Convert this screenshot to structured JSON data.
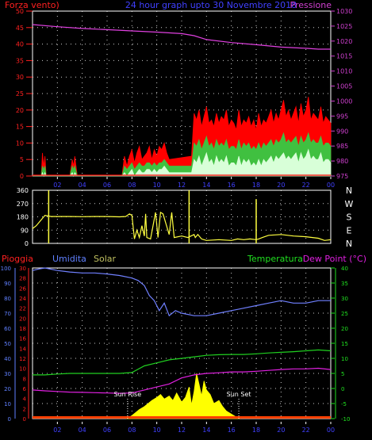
{
  "header": {
    "left_label": "Forza vento)",
    "center_title": "24 hour graph upto  30 Novembre 2018",
    "right_label": "Pressione"
  },
  "colors": {
    "background": "#000000",
    "frame": "#ffffff",
    "grid": "#ffffff",
    "wind_axis": "#ff2020",
    "pressure_axis": "#d040d0",
    "time_axis": "#4040ff",
    "wind_gust": "#ff0000",
    "wind_avg": "#40c040",
    "wind_min": "#d8ffd8",
    "pressure_line": "#e040e0",
    "direction_line": "#ffff40",
    "direction_labels": "#ffffff",
    "rain_axis": "#ff2020",
    "humidity_axis": "#6080ff",
    "temperature_axis": "#20e020",
    "humidity_line": "#7080ff",
    "temperature_line": "#20d020",
    "dewpoint_line": "#e020e0",
    "solar_fill": "#ffff00",
    "rain_bar": "#ff4000",
    "sun_marker": "#ffffff"
  },
  "time_ticks": [
    "02",
    "04",
    "06",
    "08",
    "10",
    "12",
    "14",
    "16",
    "18",
    "20",
    "22",
    "00"
  ],
  "chart_data": [
    {
      "type": "line",
      "name": "wind-pressure",
      "ylabel_left": "Forza vento)",
      "ylabel_right": "Pressione",
      "x_range": [
        0,
        24
      ],
      "ylim_left": [
        0,
        50
      ],
      "yticks_left": [
        "0",
        "5",
        "10",
        "15",
        "20",
        "25",
        "30",
        "35",
        "40",
        "45",
        "50"
      ],
      "ylim_right": [
        975,
        1030
      ],
      "yticks_right": [
        "975",
        "980",
        "985",
        "990",
        "995",
        "1000",
        "1005",
        "1010",
        "1015",
        "1020",
        "1025",
        "1030"
      ],
      "series": [
        {
          "key": "gust",
          "x": [
            0,
            0.7,
            0.8,
            0.9,
            1.0,
            1.1,
            3.0,
            3.2,
            3.3,
            3.4,
            3.6,
            7.2,
            7.4,
            7.6,
            7.8,
            8.0,
            8.2,
            8.4,
            8.6,
            8.8,
            9.0,
            9.2,
            9.4,
            9.6,
            9.8,
            10.0,
            10.2,
            10.4,
            10.6,
            10.8,
            11.0,
            12.8,
            13.0,
            13.2,
            13.4,
            13.6,
            13.8,
            14.0,
            14.2,
            14.4,
            14.6,
            14.8,
            15.0,
            15.2,
            15.4,
            15.6,
            15.8,
            16.0,
            16.2,
            16.4,
            16.6,
            16.8,
            17.0,
            17.2,
            17.4,
            17.6,
            17.8,
            18.0,
            18.2,
            18.4,
            18.6,
            18.8,
            19.0,
            19.2,
            19.4,
            19.6,
            19.8,
            20.0,
            20.2,
            20.4,
            20.6,
            20.8,
            21.0,
            21.2,
            21.4,
            21.6,
            21.8,
            22.0,
            22.2,
            22.4,
            22.6,
            22.8,
            23.0,
            23.2,
            23.4,
            23.6,
            23.8,
            24.0
          ],
          "y": [
            0,
            0,
            7,
            3,
            6,
            0,
            0,
            5,
            3,
            6,
            0,
            0,
            6,
            3,
            6,
            8,
            4,
            7,
            9,
            5,
            6,
            7,
            9,
            5,
            8,
            6,
            9,
            8,
            10,
            7,
            5,
            6,
            19,
            17,
            20,
            15,
            18,
            21,
            16,
            17,
            15,
            19,
            16,
            18,
            17,
            20,
            15,
            17,
            16,
            14,
            20,
            15,
            17,
            16,
            18,
            15,
            17,
            14,
            19,
            15,
            17,
            16,
            18,
            20,
            16,
            19,
            17,
            20,
            23,
            18,
            20,
            17,
            19,
            21,
            16,
            22,
            18,
            20,
            24,
            17,
            19,
            18,
            17,
            21,
            16,
            18,
            17,
            16
          ]
        },
        {
          "key": "average",
          "x": [
            0,
            0.7,
            0.8,
            0.9,
            1.0,
            1.1,
            3.0,
            3.2,
            3.3,
            3.4,
            3.6,
            7.2,
            7.4,
            7.6,
            7.8,
            8.0,
            8.2,
            8.4,
            8.6,
            8.8,
            9.0,
            9.2,
            9.4,
            9.6,
            9.8,
            10.0,
            10.2,
            10.4,
            10.6,
            10.8,
            11.0,
            12.8,
            13.0,
            13.2,
            13.4,
            13.6,
            13.8,
            14.0,
            14.2,
            14.4,
            14.6,
            14.8,
            15.0,
            15.2,
            15.4,
            15.6,
            15.8,
            16.0,
            16.2,
            16.4,
            16.6,
            16.8,
            17.0,
            17.2,
            17.4,
            17.6,
            17.8,
            18.0,
            18.2,
            18.4,
            18.6,
            18.8,
            19.0,
            19.2,
            19.4,
            19.6,
            19.8,
            20.0,
            20.2,
            20.4,
            20.6,
            20.8,
            21.0,
            21.2,
            21.4,
            21.6,
            21.8,
            22.0,
            22.2,
            22.4,
            22.6,
            22.8,
            23.0,
            23.2,
            23.4,
            23.6,
            23.8,
            24.0
          ],
          "y": [
            0,
            0,
            3,
            2,
            3,
            0,
            0,
            3,
            2,
            3,
            0,
            0,
            3,
            2,
            3,
            4,
            2,
            3,
            4,
            3,
            3,
            4,
            4,
            3,
            4,
            3,
            4,
            4,
            5,
            4,
            3,
            3,
            10,
            9,
            11,
            8,
            10,
            12,
            9,
            10,
            8,
            11,
            9,
            10,
            9,
            11,
            8,
            9,
            9,
            8,
            11,
            8,
            10,
            9,
            10,
            8,
            9,
            8,
            10,
            8,
            10,
            9,
            10,
            11,
            9,
            11,
            10,
            11,
            13,
            10,
            11,
            10,
            11,
            12,
            9,
            12,
            10,
            11,
            13,
            10,
            11,
            10,
            10,
            12,
            9,
            10,
            10,
            9
          ]
        },
        {
          "key": "minimum",
          "x": [
            0,
            0.7,
            0.8,
            0.9,
            1.0,
            1.1,
            3.0,
            3.2,
            3.3,
            3.4,
            3.6,
            7.2,
            7.4,
            7.6,
            7.8,
            8.0,
            8.2,
            8.4,
            8.6,
            8.8,
            9.0,
            9.2,
            9.4,
            9.6,
            9.8,
            10.0,
            10.2,
            10.4,
            10.6,
            10.8,
            11.0,
            12.8,
            13.0,
            13.2,
            13.4,
            13.6,
            13.8,
            14.0,
            14.2,
            14.4,
            14.6,
            14.8,
            15.0,
            15.2,
            15.4,
            15.6,
            15.8,
            16.0,
            16.2,
            16.4,
            16.6,
            16.8,
            17.0,
            17.2,
            17.4,
            17.6,
            17.8,
            18.0,
            18.2,
            18.4,
            18.6,
            18.8,
            19.0,
            19.2,
            19.4,
            19.6,
            19.8,
            20.0,
            20.2,
            20.4,
            20.6,
            20.8,
            21.0,
            21.2,
            21.4,
            21.6,
            21.8,
            22.0,
            22.2,
            22.4,
            22.6,
            22.8,
            23.0,
            23.2,
            23.4,
            23.6,
            23.8,
            24.0
          ],
          "y": [
            0,
            0,
            1,
            0,
            1,
            0,
            0,
            1,
            0,
            1,
            0,
            0,
            1,
            0,
            1,
            2,
            0,
            1,
            2,
            1,
            1,
            2,
            2,
            1,
            2,
            1,
            2,
            2,
            3,
            2,
            1,
            1,
            5,
            4,
            6,
            3,
            5,
            7,
            4,
            5,
            3,
            6,
            4,
            5,
            4,
            6,
            3,
            4,
            4,
            3,
            6,
            3,
            5,
            4,
            5,
            3,
            4,
            3,
            5,
            3,
            5,
            4,
            5,
            6,
            4,
            6,
            5,
            6,
            7,
            5,
            6,
            5,
            6,
            7,
            4,
            7,
            5,
            6,
            8,
            5,
            6,
            5,
            5,
            7,
            4,
            5,
            5,
            4
          ]
        },
        {
          "key": "pressure",
          "axis": "right",
          "x": [
            0,
            2,
            4,
            6,
            8,
            10,
            12,
            13,
            14,
            16,
            18,
            20,
            22,
            23,
            24
          ],
          "y": [
            1025.5,
            1024.8,
            1024.2,
            1023.8,
            1023.4,
            1023.0,
            1022.5,
            1021.8,
            1020.5,
            1019.5,
            1018.8,
            1018.0,
            1017.6,
            1017.3,
            1017.3
          ]
        }
      ]
    },
    {
      "type": "line",
      "name": "wind-direction",
      "x_range": [
        0,
        24
      ],
      "ylim": [
        0,
        360
      ],
      "yticks": [
        "0",
        "90",
        "180",
        "270",
        "360"
      ],
      "direction_labels": [
        "N",
        "W",
        "S",
        "E",
        "N"
      ],
      "series": [
        {
          "key": "direction",
          "x": [
            0,
            0.3,
            0.6,
            1.0,
            1.5,
            2.0,
            3.0,
            4.0,
            5.0,
            6.0,
            7.0,
            7.5,
            7.8,
            8.0,
            8.2,
            8.4,
            8.6,
            8.8,
            9.0,
            9.1,
            9.2,
            9.5,
            9.9,
            10.1,
            10.3,
            10.5,
            11.0,
            11.2,
            11.4,
            12.0,
            12.5,
            13.0,
            13.1,
            13.3,
            13.6,
            14.0,
            15.0,
            16.0,
            16.5,
            17.0,
            17.5,
            18.0,
            18.2,
            18.5,
            19.0,
            20.0,
            21.0,
            22.0,
            23.0,
            23.5,
            24.0
          ],
          "y": [
            100,
            120,
            150,
            190,
            182,
            182,
            182,
            181,
            182,
            182,
            180,
            182,
            200,
            190,
            30,
            90,
            40,
            120,
            50,
            200,
            40,
            30,
            210,
            40,
            210,
            200,
            60,
            210,
            40,
            50,
            40,
            60,
            40,
            60,
            30,
            20,
            25,
            20,
            30,
            25,
            30,
            25,
            30,
            40,
            55,
            60,
            50,
            45,
            35,
            20,
            25
          ]
        }
      ],
      "spikes": [
        {
          "x": 1.3,
          "y": 360
        },
        {
          "x": 12.6,
          "y": 360
        },
        {
          "x": 18.0,
          "y": 300
        }
      ]
    },
    {
      "type": "line",
      "name": "temperature-humidity",
      "labels": [
        "Pioggia",
        "Umidita",
        "Solar",
        "Temperatura",
        "Dew Point (°C)"
      ],
      "x_range": [
        0,
        24
      ],
      "yticks_rain": [
        "0",
        "10",
        "20",
        "30",
        "40",
        "50",
        "60",
        "70",
        "80",
        "90",
        "100"
      ],
      "yticks_humidity": [
        "0",
        "2",
        "4",
        "6",
        "8",
        "10",
        "12",
        "14",
        "16",
        "18",
        "20",
        "22",
        "24",
        "26",
        "28",
        "30"
      ],
      "ylim_temperature": [
        -10,
        40
      ],
      "yticks_temperature": [
        "-10",
        "-5",
        "0",
        "5",
        "10",
        "15",
        "20",
        "25",
        "30",
        "35",
        "40"
      ],
      "series": [
        {
          "key": "humidity",
          "axis": "right",
          "x": [
            0,
            0.5,
            1,
            2,
            3,
            4,
            5,
            6,
            7,
            8,
            8.5,
            9,
            9.4,
            9.8,
            10.2,
            10.6,
            11,
            11.5,
            12,
            13,
            14,
            15,
            16,
            17,
            18,
            19,
            20,
            21,
            22,
            23,
            24
          ],
          "y": [
            29.5,
            29.8,
            30,
            29.5,
            29.2,
            29.0,
            29.0,
            28.8,
            28.5,
            28.0,
            27.5,
            26.5,
            24.5,
            23.5,
            21.5,
            23.0,
            20.5,
            21.5,
            21.0,
            20.5,
            20.5,
            21.0,
            21.5,
            22.0,
            22.5,
            23.0,
            23.5,
            23.0,
            23.0,
            23.5,
            23.5
          ]
        },
        {
          "key": "temperature",
          "axis": "right",
          "x": [
            0,
            1,
            2,
            3,
            4,
            5,
            6,
            7,
            8,
            9,
            10,
            11,
            12,
            13,
            14,
            15,
            16,
            17,
            18,
            19,
            20,
            21,
            22,
            23,
            24
          ],
          "y": [
            4.5,
            4.5,
            4.8,
            5.0,
            5.0,
            5.0,
            5.0,
            5.0,
            5.3,
            7.5,
            8.5,
            9.5,
            10.0,
            10.5,
            11.0,
            11.2,
            11.3,
            11.3,
            11.5,
            11.8,
            12.0,
            12.2,
            12.5,
            12.8,
            12.5
          ]
        },
        {
          "key": "dewpoint",
          "axis": "right",
          "x": [
            0,
            1,
            2,
            3,
            4,
            5,
            6,
            7,
            8,
            9,
            10,
            11,
            12,
            13,
            14,
            15,
            16,
            17,
            18,
            19,
            20,
            21,
            22,
            23,
            24
          ],
          "y": [
            -0.5,
            -0.8,
            -1.0,
            -1.2,
            -1.3,
            -1.4,
            -1.5,
            -1.6,
            -1.5,
            -0.5,
            0.5,
            1.5,
            3.5,
            4.5,
            5.0,
            5.2,
            5.5,
            5.5,
            5.7,
            6.0,
            6.3,
            6.5,
            6.5,
            6.7,
            6.3
          ]
        },
        {
          "key": "solar",
          "x": [
            7.6,
            8.0,
            8.3,
            8.6,
            9.0,
            9.3,
            9.6,
            10.0,
            10.3,
            10.6,
            11.0,
            11.3,
            11.6,
            12.0,
            12.3,
            12.6,
            12.8,
            13.0,
            13.2,
            13.4,
            13.6,
            13.8,
            14.0,
            14.3,
            14.6,
            15.0,
            15.3,
            15.6,
            16.0,
            16.4,
            16.6
          ],
          "y": [
            0,
            2,
            4,
            6,
            8,
            10,
            12,
            14,
            16,
            13,
            15,
            12,
            17,
            11,
            14,
            21,
            9,
            18,
            30,
            23,
            15,
            25,
            19,
            16,
            10,
            12,
            8,
            5,
            3,
            1,
            0
          ]
        }
      ],
      "annotations": [
        {
          "text": "Sun Rise",
          "x": 7.65
        },
        {
          "text": "Sun Set",
          "x": 16.6
        }
      ]
    }
  ]
}
